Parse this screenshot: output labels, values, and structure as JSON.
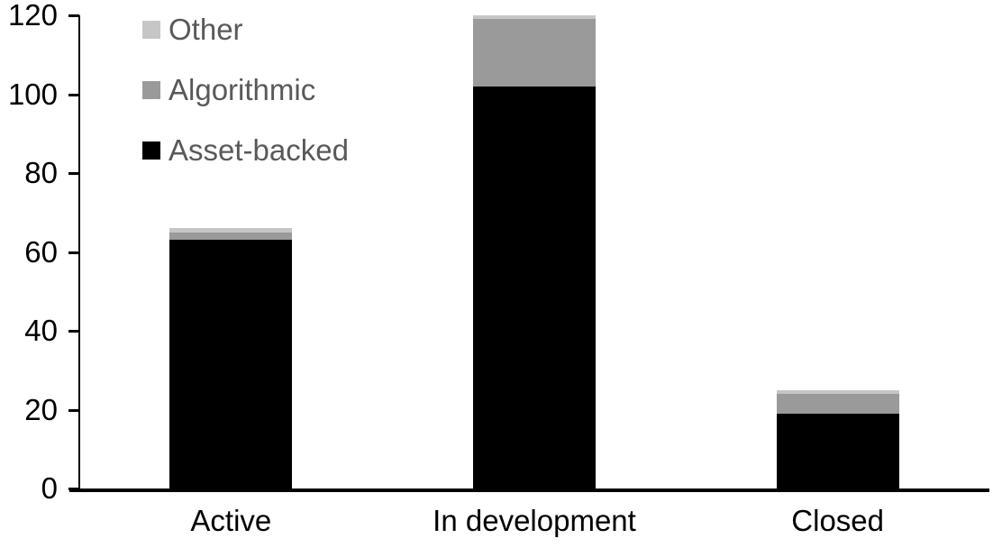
{
  "chart_data": {
    "type": "bar",
    "stacked": true,
    "title": "",
    "xlabel": "",
    "ylabel": "",
    "categories": [
      "Active",
      "In development",
      "Closed"
    ],
    "series": [
      {
        "name": "Asset-backed",
        "color": "#000000",
        "values": [
          63,
          102,
          19
        ]
      },
      {
        "name": "Algorithmic",
        "color": "#9a9a9a",
        "values": [
          2,
          17,
          5
        ]
      },
      {
        "name": "Other",
        "color": "#c6c6c6",
        "values": [
          1,
          1,
          1
        ]
      }
    ],
    "totals": [
      66,
      120,
      25
    ],
    "ylim": [
      0,
      120
    ],
    "yticks": [
      "0",
      "20",
      "40",
      "60",
      "80",
      "100",
      "120"
    ],
    "grid": false,
    "legend": {
      "position": "top-left",
      "order": [
        "Other",
        "Algorithmic",
        "Asset-backed"
      ],
      "text_color": "#595959"
    },
    "axis_color": "#000000"
  }
}
